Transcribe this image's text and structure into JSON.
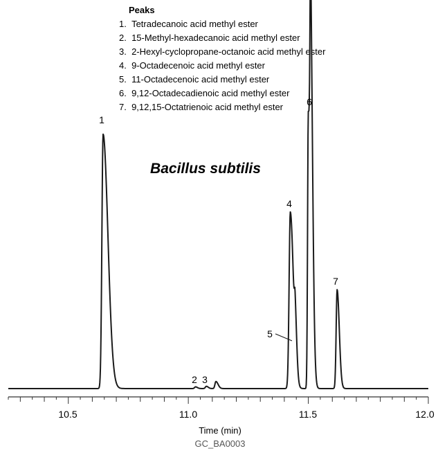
{
  "chart_data": {
    "type": "line",
    "title": "Bacillus subtilis",
    "legend_title": "Peaks",
    "legend_items": [
      "1.  Tetradecanoic acid methyl ester",
      "2.  15-Methyl-hexadecanoic acid methyl ester",
      "3.  2-Hexyl-cyclopropane-octanoic acid methyl ester",
      "4.  9-Octadecenoic acid methyl ester",
      "5.  11-Octadecenoic acid methyl ester",
      "6.  9,12-Octadecadienoic acid methyl ester",
      "7.  9,12,15-Octatrienoic acid methyl ester"
    ],
    "xlabel": "Time (min)",
    "ylabel": "",
    "xlim": [
      10.25,
      12.0
    ],
    "ylim": [
      0,
      1.0
    ],
    "grid": false,
    "x_ticks": [
      "10.5",
      "11.0",
      "11.5",
      "12.0"
    ],
    "x_tick_values": [
      10.5,
      11.0,
      11.5,
      12.0
    ],
    "baseline": 0.005,
    "peaks": [
      {
        "label": "1",
        "x": 10.645,
        "height": 0.9,
        "width": 0.005,
        "tail": 0.015
      },
      {
        "label": "2",
        "x": 11.03,
        "height": 0.006,
        "width": 0.004,
        "tail": 0.004
      },
      {
        "label": "3",
        "x": 11.075,
        "height": 0.008,
        "width": 0.004,
        "tail": 0.004
      },
      {
        "label": "",
        "x": 11.115,
        "height": 0.025,
        "width": 0.004,
        "tail": 0.005
      },
      {
        "label": "4",
        "x": 11.425,
        "height": 0.625,
        "width": 0.005,
        "tail": 0.008
      },
      {
        "label": "5",
        "x": 11.445,
        "height": 0.15,
        "width": 0.003,
        "tail": 0.004
      },
      {
        "label": "6",
        "x": 11.5,
        "height": 0.977,
        "width": 0.003,
        "tail": 0.006
      },
      {
        "label": "6",
        "x": 11.51,
        "height": 0.977,
        "width": 0.003,
        "tail": 0.006
      },
      {
        "label": "7",
        "x": 11.62,
        "height": 0.35,
        "width": 0.004,
        "tail": 0.005
      }
    ],
    "source_code": "GC_BA0003"
  },
  "colors": {
    "line": "#1a1a1a",
    "axis": "#333333",
    "text": "#000000"
  }
}
